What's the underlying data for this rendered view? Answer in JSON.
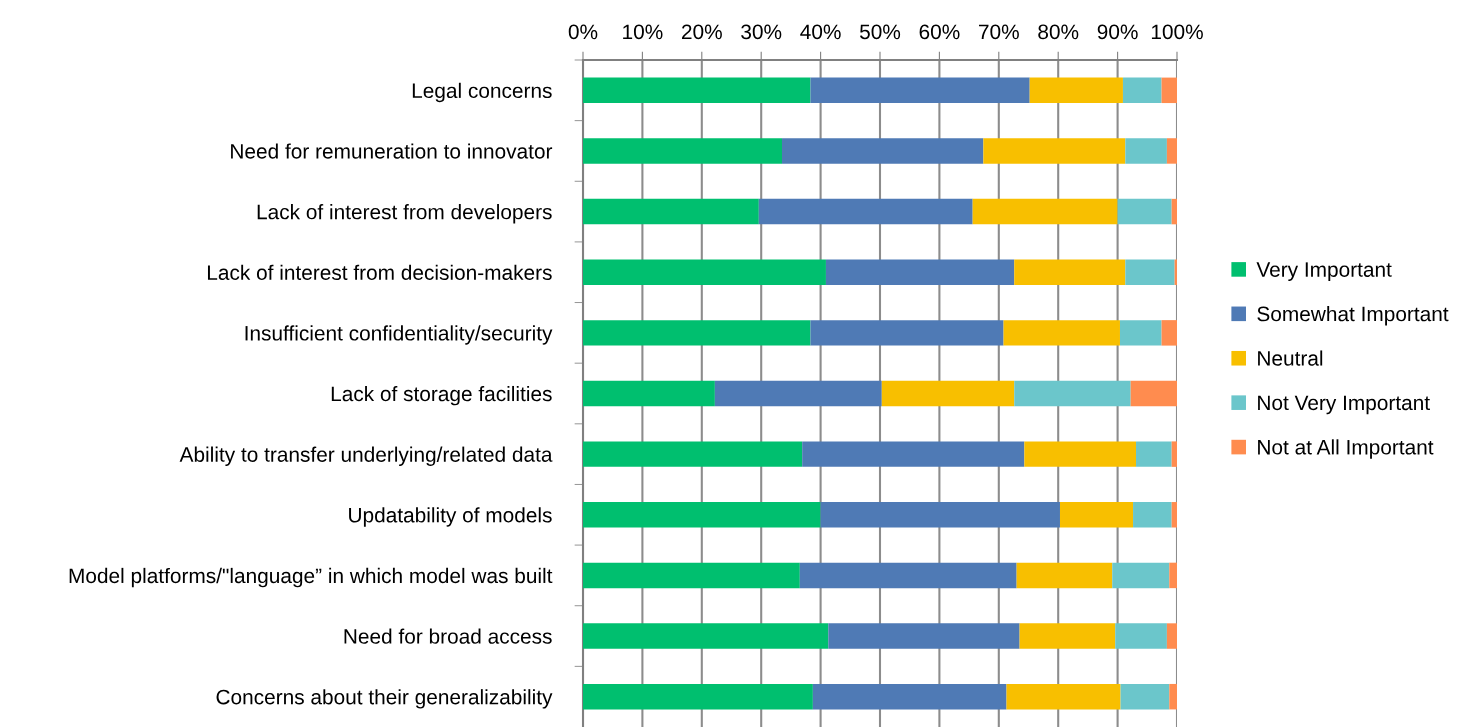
{
  "chart_data": {
    "type": "bar",
    "orientation": "horizontal",
    "stacked": true,
    "categories": [
      "Legal concerns",
      "Need for remuneration to innovator",
      "Lack of interest from developers",
      "Lack of interest from decision-makers",
      "Insufficient confidentiality/security",
      "Lack of storage facilities",
      "Ability to transfer underlying/related data",
      "Updatability of models",
      "Model platforms/\"language” in which model was built",
      "Need for broad access",
      "Concerns about their generalizability"
    ],
    "series": [
      {
        "name": "Very Important",
        "color": "#00bf6f",
        "values": [
          38.3,
          33.5,
          29.6,
          40.9,
          38.3,
          22.2,
          36.9,
          40.0,
          36.5,
          41.3,
          38.7
        ]
      },
      {
        "name": "Somewhat Important",
        "color": "#4f7ab5",
        "values": [
          36.9,
          33.9,
          36.0,
          31.7,
          32.5,
          28.1,
          37.4,
          40.3,
          36.5,
          32.2,
          32.6
        ]
      },
      {
        "name": "Neutral",
        "color": "#f8bf00",
        "values": [
          15.7,
          23.9,
          24.4,
          18.7,
          19.6,
          22.3,
          18.8,
          12.3,
          16.1,
          16.1,
          19.2
        ]
      },
      {
        "name": "Not Very Important",
        "color": "#6bc6cb",
        "values": [
          6.5,
          7.0,
          9.1,
          8.3,
          7.0,
          19.6,
          6.0,
          6.5,
          9.6,
          8.7,
          8.2
        ]
      },
      {
        "name": "Not at All Important",
        "color": "#ff8c4f",
        "values": [
          2.6,
          1.7,
          0.9,
          0.4,
          2.6,
          7.8,
          0.9,
          0.9,
          1.3,
          1.7,
          1.3
        ]
      }
    ],
    "xlim": [
      0,
      100
    ],
    "xticks": [
      {
        "value": 0,
        "label": "0%"
      },
      {
        "value": 10,
        "label": "10%"
      },
      {
        "value": 20,
        "label": "20%"
      },
      {
        "value": 30,
        "label": "30%"
      },
      {
        "value": 40,
        "label": "40%"
      },
      {
        "value": 50,
        "label": "50%"
      },
      {
        "value": 60,
        "label": "60%"
      },
      {
        "value": 70,
        "label": "70%"
      },
      {
        "value": 80,
        "label": "80%"
      },
      {
        "value": 90,
        "label": "90%"
      },
      {
        "value": 100,
        "label": "100%"
      }
    ],
    "grid": "x",
    "legend": "right"
  }
}
